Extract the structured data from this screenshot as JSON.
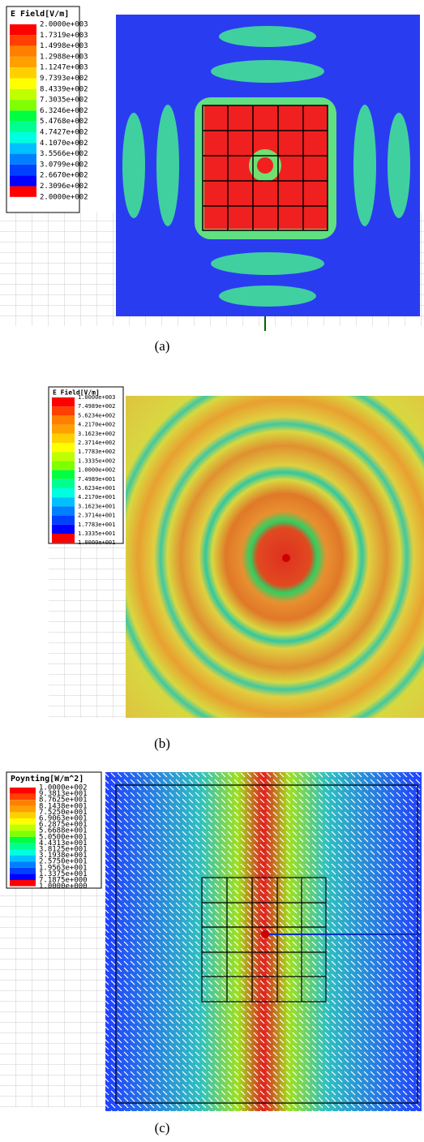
{
  "panels": [
    {
      "legend": {
        "title": "E Field[V/m]",
        "labels": [
          "2.0000e+003",
          "1.7319e+003",
          "1.4998e+003",
          "1.2988e+003",
          "1.1247e+003",
          "9.7393e+002",
          "8.4339e+002",
          "7.3035e+002",
          "6.3246e+002",
          "5.4768e+002",
          "4.7427e+002",
          "4.1070e+002",
          "3.5566e+002",
          "3.0799e+002",
          "2.6670e+002",
          "2.3096e+002",
          "2.0000e+002"
        ]
      },
      "caption": "(a)"
    },
    {
      "legend": {
        "title": "E Field[V/m]",
        "labels": [
          "1.0000e+003",
          "7.4989e+002",
          "5.6234e+002",
          "4.2170e+002",
          "3.1623e+002",
          "2.3714e+002",
          "1.7783e+002",
          "1.3335e+002",
          "1.0000e+002",
          "7.4989e+001",
          "5.6234e+001",
          "4.2170e+001",
          "3.1623e+001",
          "2.3714e+001",
          "1.7783e+001",
          "1.3335e+001",
          "1.0000e+001"
        ]
      },
      "caption": "(b)"
    },
    {
      "legend": {
        "title": "Poynting[W/m^2]",
        "labels": [
          "1.0000e+002",
          "9.3813e+001",
          "8.7625e+001",
          "8.1438e+001",
          "7.5250e+001",
          "6.9063e+001",
          "6.2875e+001",
          "5.6688e+001",
          "5.0500e+001",
          "4.4313e+001",
          "3.8125e+001",
          "3.1938e+001",
          "2.5750e+001",
          "1.9563e+001",
          "1.3375e+001",
          "7.1875e+000",
          "1.0000e+000"
        ]
      },
      "caption": "(c)"
    }
  ]
}
